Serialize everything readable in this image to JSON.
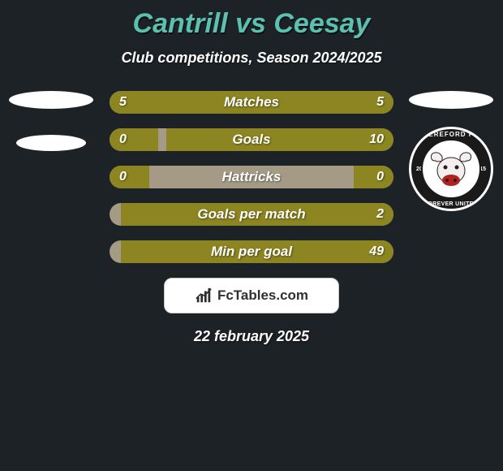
{
  "background_color": "#1d2227",
  "title": {
    "text": "Cantrill vs Ceesay",
    "color": "#5cc0b0",
    "shadow": "1px 2px 0 rgba(0,0,0,0.55)"
  },
  "subtitle": {
    "text": "Club competitions, Season 2024/2025",
    "color": "#ffffff"
  },
  "left_markers": {
    "ellipse1_color": "#ffffff",
    "ellipse2_color": "#ffffff",
    "ellipse2_margin_top": 32
  },
  "crest": {
    "top_ellipse_color": "#ffffff",
    "ring_outer": "#ffffff",
    "ring_band": "#1a1a1a",
    "ring_inner_bg": "#ffffff",
    "text_color": "#ffffff",
    "top_text": "HEREFORD FC",
    "bottom_text": "FOREVER UNITED",
    "year_left": "20",
    "year_right": "15",
    "bull_body": "#f3efef",
    "bull_dark": "#2a1d1b",
    "bull_red": "#b32222"
  },
  "bar_colors": {
    "track": "#a49a86",
    "left_fill": "#8c8521",
    "right_fill": "#8c8521",
    "label_color": "#ffffff",
    "value_color": "#ffffff"
  },
  "rows": [
    {
      "label": "Matches",
      "left_val": "5",
      "right_val": "5",
      "left_pct": 50,
      "right_pct": 50
    },
    {
      "label": "Goals",
      "left_val": "0",
      "right_val": "10",
      "left_pct": 17,
      "right_pct": 80
    },
    {
      "label": "Hattricks",
      "left_val": "0",
      "right_val": "0",
      "left_pct": 14,
      "right_pct": 14
    },
    {
      "label": "Goals per match",
      "left_val": "",
      "right_val": "2",
      "left_pct": 0,
      "right_pct": 96
    },
    {
      "label": "Min per goal",
      "left_val": "",
      "right_val": "49",
      "left_pct": 0,
      "right_pct": 96
    }
  ],
  "badge": {
    "bg": "#ffffff",
    "border": "#c9c9c9",
    "text": "FcTables.com",
    "text_color": "#303030",
    "icon_color": "#2d2d2d"
  },
  "date": {
    "text": "22 february 2025",
    "color": "#ffffff"
  }
}
